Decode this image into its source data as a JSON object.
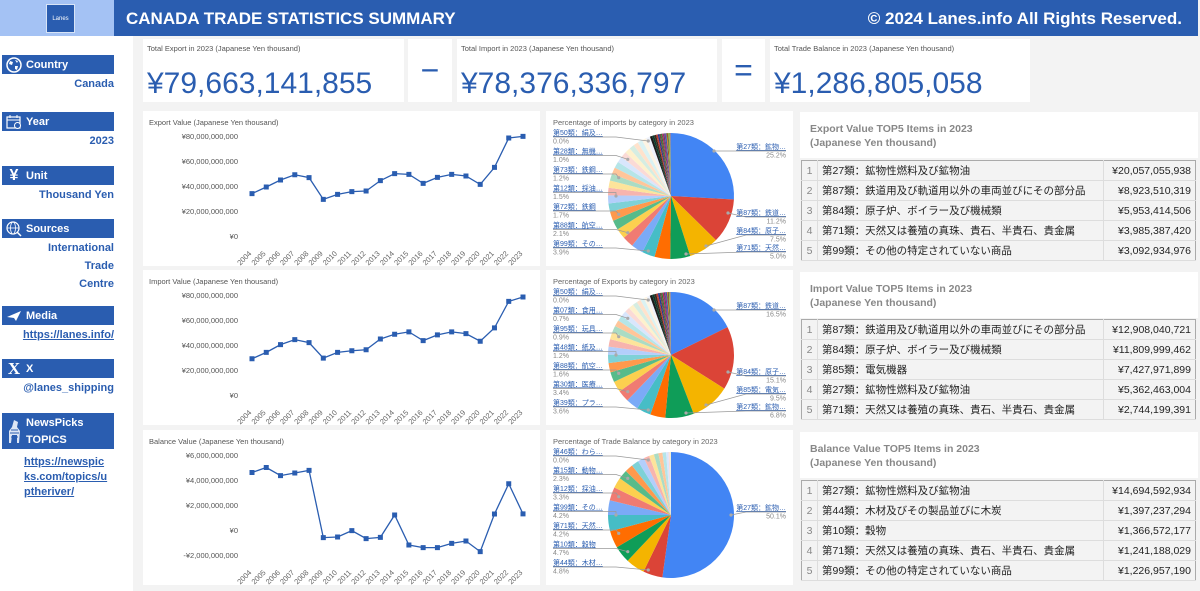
{
  "header": {
    "logo_text": "Lanes",
    "title": "CANADA TRADE STATISTICS SUMMARY",
    "copyright": "© 2024 Lanes.info All Rights Reserved."
  },
  "sidebar": {
    "country": {
      "label": "Country",
      "value": "Canada",
      "icon": "globe-icon"
    },
    "year": {
      "label": "Year",
      "value": "2023",
      "icon": "calendar-icon"
    },
    "unit": {
      "label": "Unit",
      "value": "Thousand Yen",
      "icon": "yen-icon"
    },
    "sources": {
      "label": "Sources",
      "value_lines": [
        "International",
        "Trade",
        "Centre"
      ],
      "icon": "globe-search-icon"
    },
    "media": {
      "label": "Media",
      "value": "https://lanes.info/",
      "icon": "paper-plane-icon"
    },
    "x": {
      "label": "X",
      "value": "@lanes_shipping",
      "icon": "x-logo-icon"
    },
    "newspicks": {
      "label_lines": [
        "NewsPicks",
        "TOPICS"
      ],
      "value_lines": [
        "https://newspic",
        "ks.com/topics/u",
        "ptheriver/"
      ],
      "icon": "zebra-icon"
    }
  },
  "kpis": {
    "export": {
      "label": "Total Export in 2023 (Japanese Yen thousand)",
      "value": "¥79,663,141,855"
    },
    "minus": "−",
    "import": {
      "label": "Total Import in 2023 (Japanese Yen thousand)",
      "value": "¥78,376,336,797"
    },
    "equals": "=",
    "balance": {
      "label": "Total Trade Balance in 2023 (Japanese Yen thousand)",
      "value": "¥1,286,805,058"
    }
  },
  "chart_data": [
    {
      "id": "export-line",
      "type": "line",
      "title": "Export Value (Japanese Yen thousand)",
      "x": [
        "2004",
        "2005",
        "2006",
        "2007",
        "2008",
        "2009",
        "2010",
        "2011",
        "2012",
        "2013",
        "2014",
        "2015",
        "2016",
        "2017",
        "2018",
        "2019",
        "2020",
        "2021",
        "2022",
        "2023"
      ],
      "values": [
        33.9,
        39.2,
        44.8,
        49.0,
        46.7,
        29.3,
        33.3,
        35.5,
        36.0,
        44.3,
        49.9,
        49.3,
        42.1,
        46.9,
        49.3,
        48.0,
        41.3,
        54.9,
        78.4,
        79.7
      ],
      "value_unit": "billion (×1,000,000,000) Japanese Yen thousand",
      "ylim": [
        0,
        80
      ],
      "yticks": [
        0,
        20,
        40,
        60,
        80
      ],
      "ytick_labels": [
        "¥0",
        "¥20,000,000,000",
        "¥40,000,000,000",
        "¥60,000,000,000",
        "¥80,000,000,000"
      ],
      "color": "#2a5db0"
    },
    {
      "id": "import-line",
      "type": "line",
      "title": "Import Value (Japanese Yen thousand)",
      "x": [
        "2004",
        "2005",
        "2006",
        "2007",
        "2008",
        "2009",
        "2010",
        "2011",
        "2012",
        "2013",
        "2014",
        "2015",
        "2016",
        "2017",
        "2018",
        "2019",
        "2020",
        "2021",
        "2022",
        "2023"
      ],
      "values": [
        29.0,
        34.1,
        40.3,
        44.3,
        41.9,
        29.5,
        34.1,
        35.4,
        36.2,
        44.8,
        48.6,
        50.5,
        43.5,
        48.1,
        50.5,
        49.1,
        43.0,
        53.7,
        74.9,
        78.4
      ],
      "value_unit": "billion (×1,000,000,000) Japanese Yen thousand",
      "ylim": [
        0,
        80
      ],
      "yticks": [
        0,
        20,
        40,
        60,
        80
      ],
      "ytick_labels": [
        "¥0",
        "¥20,000,000,000",
        "¥40,000,000,000",
        "¥60,000,000,000",
        "¥80,000,000,000"
      ],
      "color": "#2a5db0"
    },
    {
      "id": "balance-line",
      "type": "line",
      "title": "Balance Value (Japanese Yen thousand)",
      "x": [
        "2004",
        "2005",
        "2006",
        "2007",
        "2008",
        "2009",
        "2010",
        "2011",
        "2012",
        "2013",
        "2014",
        "2015",
        "2016",
        "2017",
        "2018",
        "2019",
        "2020",
        "2021",
        "2022",
        "2023"
      ],
      "values": [
        4.6,
        5.0,
        4.35,
        4.56,
        4.77,
        -0.61,
        -0.56,
        -0.05,
        -0.69,
        -0.59,
        1.2,
        -1.2,
        -1.41,
        -1.41,
        -1.07,
        -0.88,
        -1.73,
        1.28,
        3.7,
        1.29
      ],
      "value_unit": "billion (×1,000,000,000) Japanese Yen thousand",
      "ylim": [
        -2,
        6
      ],
      "yticks": [
        -2,
        0,
        2,
        4,
        6
      ],
      "ytick_labels": [
        "-¥2,000,000,000",
        "¥0",
        "¥2,000,000,000",
        "¥4,000,000,000",
        "¥6,000,000,000"
      ],
      "color": "#2a5db0"
    },
    {
      "id": "pie-1",
      "type": "pie",
      "title": "Percentage of imports by category in 2023",
      "slices": [
        25.2,
        11.2,
        7.5,
        5.0,
        3.9,
        3.2,
        3.0,
        2.8,
        2.6,
        2.4,
        2.3,
        2.1,
        2.0,
        1.9,
        1.8,
        1.7,
        1.7,
        1.6,
        1.5,
        1.5,
        1.4,
        1.3,
        1.2,
        1.2,
        1.1,
        1.0,
        0.6,
        0.5,
        0.5,
        0.4,
        0.4,
        0.4,
        0.3,
        0.3,
        0.3,
        0.3,
        0.2,
        0.2,
        0.2,
        0.2,
        0.2,
        0.1,
        0.1,
        0.1,
        0.0
      ],
      "labels_left": [
        {
          "name": "第50類：絹及…",
          "pct": "0.0%"
        },
        {
          "name": "第28類：無機…",
          "pct": "1.0%"
        },
        {
          "name": "第73類：鉄鋼…",
          "pct": "1.2%"
        },
        {
          "name": "第12類：採油…",
          "pct": "1.5%"
        },
        {
          "name": "第72類：鉄鋼",
          "pct": "1.7%"
        },
        {
          "name": "第88類：航空…",
          "pct": "2.1%"
        },
        {
          "name": "第99類：その…",
          "pct": "3.9%"
        }
      ],
      "labels_right": [
        {
          "name": "第27類：鉱物…",
          "pct": "25.2%"
        },
        {
          "name": "第87類：鉄道…",
          "pct": "11.2%"
        },
        {
          "name": "第84類：原子…",
          "pct": "7.5%"
        },
        {
          "name": "第71類：天然…",
          "pct": "5.0%"
        }
      ]
    },
    {
      "id": "pie-2",
      "type": "pie",
      "title": "Percentage of Exports by category in 2023",
      "slices": [
        16.5,
        15.1,
        9.5,
        6.8,
        3.6,
        3.4,
        3.0,
        2.8,
        2.6,
        2.4,
        2.2,
        2.0,
        1.9,
        1.8,
        1.7,
        1.6,
        1.5,
        1.4,
        1.3,
        1.2,
        1.2,
        1.1,
        1.0,
        0.9,
        0.8,
        0.7,
        0.6,
        0.5,
        0.5,
        0.4,
        0.4,
        0.4,
        0.3,
        0.3,
        0.3,
        0.3,
        0.2,
        0.2,
        0.2,
        0.2,
        0.1,
        0.1,
        0.1,
        0.0
      ],
      "labels_left": [
        {
          "name": "第50類：絹及…",
          "pct": "0.0%"
        },
        {
          "name": "第07類：食用…",
          "pct": "0.7%"
        },
        {
          "name": "第95類：玩具…",
          "pct": "0.9%"
        },
        {
          "name": "第48類：紙及…",
          "pct": "1.2%"
        },
        {
          "name": "第88類：航空…",
          "pct": "1.6%"
        },
        {
          "name": "第30類：医療…",
          "pct": "3.4%"
        },
        {
          "name": "第39類：プラ…",
          "pct": "3.6%"
        }
      ],
      "labels_right": [
        {
          "name": "第87類：鉄道…",
          "pct": "16.5%"
        },
        {
          "name": "第84類：原子…",
          "pct": "15.1%"
        },
        {
          "name": "第85類：電気…",
          "pct": "9.5%"
        },
        {
          "name": "第27類：鉱物…",
          "pct": "6.8%"
        }
      ]
    },
    {
      "id": "pie-3",
      "type": "pie",
      "title": "Percentage of Trade Balance by category in 2023",
      "slices": [
        50.1,
        4.8,
        4.7,
        4.2,
        4.2,
        4.0,
        3.6,
        3.3,
        2.6,
        2.3,
        2.0,
        1.8,
        1.6,
        1.4,
        1.2,
        1.1,
        1.0,
        0.9,
        0.6,
        0.3,
        0.2,
        0.1,
        0.0
      ],
      "labels_left": [
        {
          "name": "第46類：わら…",
          "pct": "0.0%"
        },
        {
          "name": "第15類：動物…",
          "pct": "2.3%"
        },
        {
          "name": "第12類：採油…",
          "pct": "3.3%"
        },
        {
          "name": "第99類：その…",
          "pct": "4.2%"
        },
        {
          "name": "第71類：天然…",
          "pct": "4.2%"
        },
        {
          "name": "第10類：穀物",
          "pct": "4.7%"
        },
        {
          "name": "第44類：木材…",
          "pct": "4.8%"
        }
      ],
      "labels_right": [
        {
          "name": "第27類：鉱物…",
          "pct": "50.1%"
        }
      ]
    }
  ],
  "palette": [
    "#4285f4",
    "#db4437",
    "#f4b400",
    "#0f9d58",
    "#ff6d01",
    "#46bdc6",
    "#7baaf7",
    "#f07b72",
    "#fcd04f",
    "#57bb8a",
    "#ff994d",
    "#7ed1d7",
    "#b3cefb",
    "#f7b4ae",
    "#fde49b",
    "#abdcc4",
    "#ffc599",
    "#b5e5e8",
    "#d9e6fc",
    "#fbdad6",
    "#fef1cd",
    "#d5ede2",
    "#ffe2cc",
    "#daf2f3",
    "#fdf4e3",
    "#eef2fb",
    "#1b1b1b",
    "#0b3d2e",
    "#3d2b1f",
    "#c0392b",
    "#1f3a93",
    "#6d4c41",
    "#2e7d32",
    "#c2185b",
    "#455a64",
    "#8e24aa",
    "#00838f",
    "#ef6c00",
    "#5d4037",
    "#7cb342",
    "#9e9d24",
    "#26a69a",
    "#ab47bc",
    "#546e7a",
    "#bdbdbd"
  ],
  "tables": [
    {
      "title_lines": [
        "Export Value TOP5 Items in 2023",
        "(Japanese Yen thousand)"
      ],
      "rows": [
        {
          "rank": "1",
          "name": "第27類：鉱物性燃料及び鉱物油",
          "value": "¥20,057,055,938"
        },
        {
          "rank": "2",
          "name": "第87類：鉄道用及び軌道用以外の車両並びにその部分品",
          "value": "¥8,923,510,319"
        },
        {
          "rank": "3",
          "name": "第84類：原子炉、ボイラー及び機械類",
          "value": "¥5,953,414,506"
        },
        {
          "rank": "4",
          "name": "第71類：天然又は養殖の真珠、貴石、半貴石、貴金属",
          "value": "¥3,985,387,420"
        },
        {
          "rank": "5",
          "name": "第99類：その他の特定されていない商品",
          "value": "¥3,092,934,976"
        }
      ]
    },
    {
      "title_lines": [
        "Import Value TOP5 Items in 2023",
        "(Japanese Yen thousand)"
      ],
      "rows": [
        {
          "rank": "1",
          "name": "第87類：鉄道用及び軌道用以外の車両並びにその部分品",
          "value": "¥12,908,040,721"
        },
        {
          "rank": "2",
          "name": "第84類：原子炉、ボイラー及び機械類",
          "value": "¥11,809,999,462"
        },
        {
          "rank": "3",
          "name": "第85類：電気機器",
          "value": "¥7,427,971,899"
        },
        {
          "rank": "4",
          "name": "第27類：鉱物性燃料及び鉱物油",
          "value": "¥5,362,463,004"
        },
        {
          "rank": "5",
          "name": "第71類：天然又は養殖の真珠、貴石、半貴石、貴金属",
          "value": "¥2,744,199,391"
        }
      ]
    },
    {
      "title_lines": [
        "Balance Value TOP5 Items in 2023",
        "(Japanese Yen thousand)"
      ],
      "rows": [
        {
          "rank": "1",
          "name": "第27類：鉱物性燃料及び鉱物油",
          "value": "¥14,694,592,934"
        },
        {
          "rank": "2",
          "name": "第44類：木材及びその製品並びに木炭",
          "value": "¥1,397,237,294"
        },
        {
          "rank": "3",
          "name": "第10類：穀物",
          "value": "¥1,366,572,177"
        },
        {
          "rank": "4",
          "name": "第71類：天然又は養殖の真珠、貴石、半貴石、貴金属",
          "value": "¥1,241,188,029"
        },
        {
          "rank": "5",
          "name": "第99類：その他の特定されていない商品",
          "value": "¥1,226,957,190"
        }
      ]
    }
  ]
}
